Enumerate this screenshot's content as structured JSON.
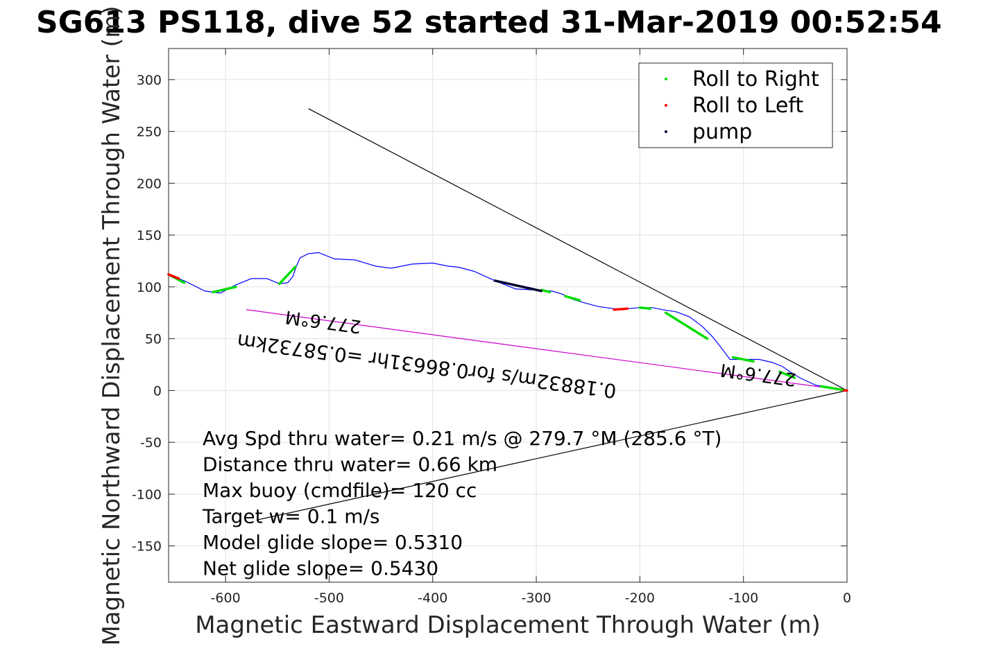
{
  "chart_data": {
    "type": "line",
    "title": "SG613 PS118, dive 52 started 31-Mar-2019 00:52:54",
    "xlabel": "Magnetic Eastward Displacement Through Water (m)",
    "ylabel": "Magnetic Northward Displacement Through Water (m)",
    "xlim": [
      -655,
      0
    ],
    "ylim": [
      -185,
      330
    ],
    "xticks": [
      -600,
      -500,
      -400,
      -300,
      -200,
      -100,
      0
    ],
    "yticks": [
      -150,
      -100,
      -50,
      0,
      50,
      100,
      150,
      200,
      250,
      300
    ],
    "grid": true,
    "legend": {
      "placement": "top-right",
      "entries": [
        {
          "label": "Roll to Right",
          "color": "#00dd00"
        },
        {
          "label": "Roll to Left",
          "color": "#ff0000"
        },
        {
          "label": "pump",
          "color": "#000033"
        }
      ]
    },
    "track": {
      "color": "#0000ff",
      "x": [
        0,
        -15,
        -30,
        -45,
        -55,
        -62,
        -72,
        -85,
        -100,
        -113,
        -122,
        -130,
        -140,
        -152,
        -165,
        -178,
        -188,
        -200,
        -212,
        -225,
        -240,
        -255,
        -265,
        -275,
        -285,
        -300,
        -320,
        -340,
        -360,
        -375,
        -385,
        -400,
        -420,
        -440,
        -455,
        -475,
        -495,
        -510,
        -520,
        -528,
        -532,
        -535,
        -540,
        -548,
        -560,
        -575,
        -590,
        -605,
        -620,
        -638,
        -650,
        -655
      ],
      "y": [
        0,
        3,
        5,
        12,
        18,
        23,
        27,
        30,
        30,
        30,
        42,
        52,
        62,
        71,
        76,
        78,
        80,
        80,
        79,
        79,
        81,
        85,
        88,
        93,
        96,
        97,
        98,
        106,
        115,
        119,
        120,
        123,
        122,
        118,
        120,
        126,
        127,
        133,
        132,
        128,
        119,
        110,
        104,
        103,
        108,
        108,
        102,
        94,
        96,
        105,
        110,
        112
      ]
    },
    "roll_right": [
      {
        "x": [
          -655,
          -640
        ],
        "y": [
          112,
          104
        ]
      },
      {
        "x": [
          -612,
          -590
        ],
        "y": [
          95,
          100
        ]
      },
      {
        "x": [
          -548,
          -532
        ],
        "y": [
          103,
          120
        ]
      },
      {
        "x": [
          -295,
          -287
        ],
        "y": [
          97,
          95
        ]
      },
      {
        "x": [
          -272,
          -258
        ],
        "y": [
          91,
          87
        ]
      },
      {
        "x": [
          -200,
          -190
        ],
        "y": [
          80,
          79
        ]
      },
      {
        "x": [
          -175,
          -135
        ],
        "y": [
          75,
          50
        ]
      },
      {
        "x": [
          -110,
          -90
        ],
        "y": [
          32,
          28
        ]
      },
      {
        "x": [
          -65,
          -50
        ],
        "y": [
          18,
          12
        ]
      },
      {
        "x": [
          -25,
          0
        ],
        "y": [
          4,
          0
        ]
      }
    ],
    "roll_left": [
      {
        "x": [
          -655,
          -645
        ],
        "y": [
          112,
          108
        ]
      },
      {
        "x": [
          -225,
          -212
        ],
        "y": [
          78,
          79
        ]
      },
      {
        "x": [
          -3,
          0
        ],
        "y": [
          0,
          0
        ]
      }
    ],
    "pump": [
      {
        "x": [
          -340,
          -295
        ],
        "y": [
          106,
          96
        ]
      }
    ],
    "direction_lines": [
      {
        "color": "#000000",
        "x": [
          0,
          -520
        ],
        "y": [
          0,
          272
        ]
      },
      {
        "color": "#000000",
        "x": [
          0,
          -570
        ],
        "y": [
          0,
          -125
        ]
      },
      {
        "color": "#cc00cc",
        "x": [
          0,
          -580
        ],
        "y": [
          0,
          78
        ]
      }
    ],
    "annotations": [
      {
        "id": "current_speed",
        "text": "0.18832m/s for0.86631hr =0.58732km",
        "x": -405,
        "y": 30
      },
      {
        "id": "bearing_1",
        "text": "277.6°M",
        "x": -85,
        "y": 21
      },
      {
        "id": "bearing_2",
        "text": "277.6°M",
        "x": -505,
        "y": 72
      }
    ],
    "stats_lines": [
      "Avg Spd thru water=  0.21 m/s @ 279.7 °M (285.6 °T)",
      "Distance thru water=  0.66 km",
      "Max buoy (cmdfile)= 120 cc",
      "Target w= 0.1 m/s",
      "Model glide slope= 0.5310",
      "Net glide slope= 0.5430"
    ]
  }
}
